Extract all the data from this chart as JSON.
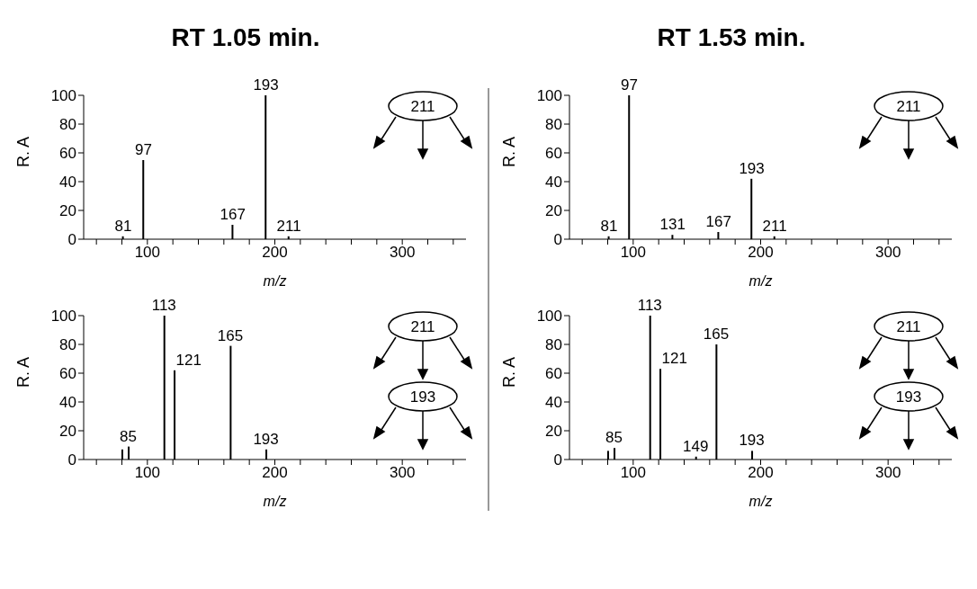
{
  "chart_data": [
    {
      "type": "bar",
      "title": "RT 1.05 min.",
      "xlabel": "m/z",
      "ylabel": "R. A",
      "color": "#000000",
      "annotations": [
        "211",
        {
          "text": "81",
          "x": 81,
          "y": 2
        },
        {
          "text": "97",
          "x": 97,
          "y": 55
        },
        {
          "text": "167",
          "x": 167,
          "y": 10
        },
        {
          "text": "193",
          "x": 193,
          "y": 100
        },
        {
          "text": "211",
          "x": 211,
          "y": 2
        }
      ],
      "x": [
        81,
        97,
        167,
        193,
        211
      ],
      "values": [
        2,
        55,
        10,
        100,
        2
      ],
      "xlim": [
        50,
        350
      ],
      "ylim": [
        0,
        100
      ],
      "xticks": [
        {
          "value": 60,
          "label": null
        },
        {
          "value": 80,
          "label": null
        },
        100,
        {
          "value": 120,
          "label": null
        },
        {
          "value": 140,
          "label": null
        },
        {
          "value": 160,
          "label": null
        },
        {
          "value": 180,
          "label": null
        },
        200,
        {
          "value": 220,
          "label": null
        },
        {
          "value": 240,
          "label": null
        },
        {
          "value": 260,
          "label": null
        },
        {
          "value": 280,
          "label": null
        },
        300,
        {
          "value": 320,
          "label": null
        },
        {
          "value": 340,
          "label": null
        }
      ],
      "yticks": [
        0,
        20,
        40,
        60,
        80,
        100
      ]
    },
    {
      "type": "bar",
      "title": "RT 1.53 min.",
      "xlabel": "m/z",
      "ylabel": "R. A",
      "color": "#000000",
      "annotations": [
        "211",
        {
          "text": "81",
          "x": 81,
          "y": 2
        },
        {
          "text": "97",
          "x": 97,
          "y": 100
        },
        {
          "text": "131",
          "x": 131,
          "y": 3
        },
        {
          "text": "167",
          "x": 167,
          "y": 5
        },
        {
          "text": "193",
          "x": 193,
          "y": 42
        },
        {
          "text": "211",
          "x": 211,
          "y": 2
        }
      ],
      "x": [
        81,
        97,
        131,
        167,
        193,
        211
      ],
      "values": [
        2,
        100,
        3,
        5,
        42,
        2
      ],
      "xlim": [
        50,
        350
      ],
      "ylim": [
        0,
        100
      ],
      "xticks": [
        {
          "value": 60,
          "label": null
        },
        {
          "value": 80,
          "label": null
        },
        100,
        {
          "value": 120,
          "label": null
        },
        {
          "value": 140,
          "label": null
        },
        {
          "value": 160,
          "label": null
        },
        {
          "value": 180,
          "label": null
        },
        200,
        {
          "value": 220,
          "label": null
        },
        {
          "value": 240,
          "label": null
        },
        {
          "value": 260,
          "label": null
        },
        {
          "value": 280,
          "label": null
        },
        300,
        {
          "value": 320,
          "label": null
        },
        {
          "value": 340,
          "label": null
        }
      ],
      "yticks": [
        0,
        20,
        40,
        60,
        80,
        100
      ]
    },
    {
      "type": "bar",
      "xlabel": "m/z",
      "ylabel": "R. A",
      "color": "#000000",
      "annotations": [
        "211",
        "193",
        {
          "text": "85",
          "x": 85,
          "y": 9
        },
        {
          "text": "113",
          "x": 113,
          "y": 100
        },
        {
          "text": "121",
          "x": 121,
          "y": 62
        },
        {
          "text": "165",
          "x": 165,
          "y": 79
        },
        {
          "text": "193",
          "x": 193,
          "y": 7
        }
      ],
      "x": [
        80,
        85,
        113,
        121,
        165,
        193
      ],
      "values": [
        7,
        9,
        100,
        62,
        79,
        7
      ],
      "xlim": [
        50,
        350
      ],
      "ylim": [
        0,
        100
      ],
      "xticks": [
        {
          "value": 60,
          "label": null
        },
        {
          "value": 80,
          "label": null
        },
        100,
        {
          "value": 120,
          "label": null
        },
        {
          "value": 140,
          "label": null
        },
        {
          "value": 160,
          "label": null
        },
        {
          "value": 180,
          "label": null
        },
        200,
        {
          "value": 220,
          "label": null
        },
        {
          "value": 240,
          "label": null
        },
        {
          "value": 260,
          "label": null
        },
        {
          "value": 280,
          "label": null
        },
        300,
        {
          "value": 320,
          "label": null
        },
        {
          "value": 340,
          "label": null
        }
      ],
      "yticks": [
        0,
        20,
        40,
        60,
        80,
        100
      ]
    },
    {
      "type": "bar",
      "xlabel": "m/z",
      "ylabel": "R. A",
      "color": "#000000",
      "annotations": [
        "211",
        "193",
        {
          "text": "85",
          "x": 85,
          "y": 8
        },
        {
          "text": "113",
          "x": 113,
          "y": 100
        },
        {
          "text": "121",
          "x": 121,
          "y": 63
        },
        {
          "text": "149",
          "x": 149,
          "y": 2
        },
        {
          "text": "165",
          "x": 165,
          "y": 80
        },
        {
          "text": "193",
          "x": 193,
          "y": 6
        }
      ],
      "x": [
        80,
        85,
        113,
        121,
        149,
        165,
        193
      ],
      "values": [
        6,
        8,
        100,
        63,
        2,
        80,
        6
      ],
      "xlim": [
        50,
        350
      ],
      "ylim": [
        0,
        100
      ],
      "xticks": [
        {
          "value": 60,
          "label": null
        },
        {
          "value": 80,
          "label": null
        },
        100,
        {
          "value": 120,
          "label": null
        },
        {
          "value": 140,
          "label": null
        },
        {
          "value": 160,
          "label": null
        },
        {
          "value": 180,
          "label": null
        },
        200,
        {
          "value": 220,
          "label": null
        },
        {
          "value": 240,
          "label": null
        },
        {
          "value": 260,
          "label": null
        },
        {
          "value": 280,
          "label": null
        },
        300,
        {
          "value": 320,
          "label": null
        },
        {
          "value": 340,
          "label": null
        }
      ],
      "yticks": [
        0,
        20,
        40,
        60,
        80,
        100
      ]
    }
  ]
}
